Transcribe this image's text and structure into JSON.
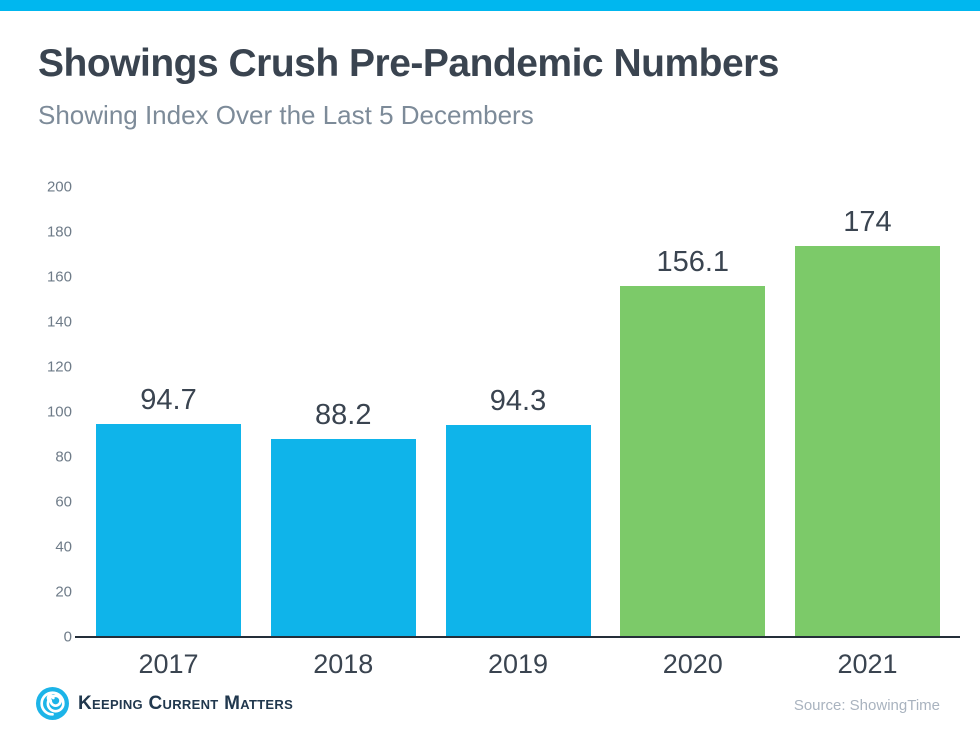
{
  "accent_color": "#00B7EF",
  "header": {
    "title": "Showings Crush Pre-Pandemic Numbers",
    "subtitle": "Showing Index Over the Last 5 Decembers"
  },
  "chart_data": {
    "type": "bar",
    "title": "Showings Crush Pre-Pandemic Numbers",
    "subtitle": "Showing Index Over the Last 5 Decembers",
    "categories": [
      "2017",
      "2018",
      "2019",
      "2020",
      "2021"
    ],
    "values": [
      94.7,
      88.2,
      94.3,
      156.1,
      174
    ],
    "data_labels": [
      "94.7",
      "88.2",
      "94.3",
      "156.1",
      "174"
    ],
    "bar_colors": [
      "#0FB4EA",
      "#0FB4EA",
      "#0FB4EA",
      "#7CCA69",
      "#7CCA69"
    ],
    "xlabel": "",
    "ylabel": "",
    "ylim": [
      0,
      200
    ],
    "yticks": [
      0,
      20,
      40,
      60,
      80,
      100,
      120,
      140,
      160,
      180,
      200
    ],
    "grid": false,
    "legend": false,
    "data_label_color": "#3A4450",
    "axis_label_color": "#6E7B88"
  },
  "footer": {
    "logo_text": "Keeping Current Matters",
    "source": "Source: ShowingTime"
  }
}
